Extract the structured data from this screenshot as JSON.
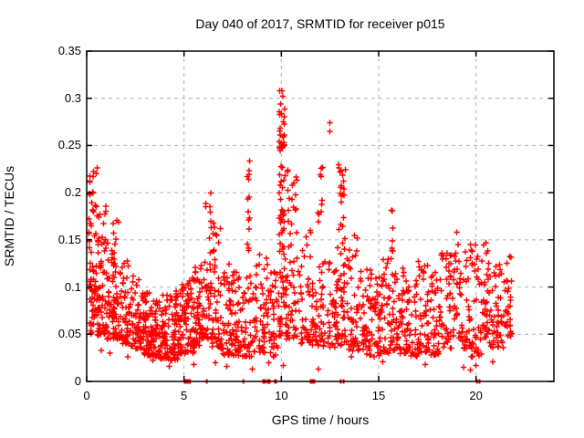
{
  "window": {
    "background": "#ffffff"
  },
  "chart_data": {
    "type": "scatter",
    "title": "Day 040 of 2017, SRMTID for receiver p015",
    "xlabel": "GPS time / hours",
    "ylabel": "SRMTID / TECUs",
    "xlim": [
      0,
      24
    ],
    "ylim": [
      0,
      0.35
    ],
    "marker": "plus",
    "marker_color": "#ff0000",
    "grid": {
      "on": true,
      "color": "#b2b2b2",
      "dash": "4 4"
    },
    "border_color": "#000000",
    "legend": "none",
    "xticks": [
      {
        "value": 0,
        "label": "0"
      },
      {
        "value": 5,
        "label": "5"
      },
      {
        "value": 10,
        "label": "10"
      },
      {
        "value": 15,
        "label": "15"
      },
      {
        "value": 20,
        "label": "20"
      }
    ],
    "yticks": [
      {
        "value": 0,
        "label": "0"
      },
      {
        "value": 0.05,
        "label": "0.05"
      },
      {
        "value": 0.1,
        "label": "0.1"
      },
      {
        "value": 0.15,
        "label": "0.15"
      },
      {
        "value": 0.2,
        "label": "0.2"
      },
      {
        "value": 0.25,
        "label": "0.25"
      },
      {
        "value": 0.3,
        "label": "0.3"
      },
      {
        "value": 0.35,
        "label": "0.35"
      }
    ],
    "seed": 20170401,
    "point_clusters": [
      {
        "x0": 0.1,
        "x1": 0.55,
        "y0": 0.095,
        "y1": 0.232,
        "n": 50,
        "k": 1.3
      },
      {
        "x0": 0.15,
        "x1": 0.7,
        "y0": 0.048,
        "y1": 0.1,
        "n": 40,
        "k": 1.2
      },
      {
        "x0": 0.55,
        "x1": 1.0,
        "y0": 0.05,
        "y1": 0.19,
        "n": 48,
        "k": 1.6
      },
      {
        "x0": 0.95,
        "x1": 1.45,
        "y0": 0.045,
        "y1": 0.15,
        "n": 45,
        "k": 1.6
      },
      {
        "x0": 1.35,
        "x1": 1.75,
        "y0": 0.045,
        "y1": 0.174,
        "n": 42,
        "k": 1.8
      },
      {
        "x0": 1.75,
        "x1": 2.25,
        "y0": 0.04,
        "y1": 0.128,
        "n": 48,
        "k": 1.7
      },
      {
        "x0": 2.25,
        "x1": 2.75,
        "y0": 0.035,
        "y1": 0.112,
        "n": 50,
        "k": 1.7
      },
      {
        "x0": 2.75,
        "x1": 3.25,
        "y0": 0.028,
        "y1": 0.098,
        "n": 55,
        "k": 1.6
      },
      {
        "x0": 3.25,
        "x1": 3.75,
        "y0": 0.026,
        "y1": 0.088,
        "n": 55,
        "k": 1.5
      },
      {
        "x0": 3.75,
        "x1": 4.25,
        "y0": 0.024,
        "y1": 0.092,
        "n": 55,
        "k": 1.5
      },
      {
        "x0": 4.25,
        "x1": 4.7,
        "y0": 0.022,
        "y1": 0.096,
        "n": 50,
        "k": 1.5
      },
      {
        "x0": 4.7,
        "x1": 5.1,
        "y0": 0.028,
        "y1": 0.104,
        "n": 45,
        "k": 1.5
      },
      {
        "x0": 5.1,
        "x1": 5.55,
        "y0": 0.03,
        "y1": 0.11,
        "n": 45,
        "k": 1.5
      },
      {
        "x0": 5.55,
        "x1": 5.95,
        "y0": 0.038,
        "y1": 0.125,
        "n": 42,
        "k": 1.6
      },
      {
        "x0": 5.95,
        "x1": 6.45,
        "y0": 0.045,
        "y1": 0.2,
        "n": 50,
        "k": 1.9
      },
      {
        "x0": 6.45,
        "x1": 6.95,
        "y0": 0.035,
        "y1": 0.168,
        "n": 46,
        "k": 1.8
      },
      {
        "x0": 6.95,
        "x1": 7.5,
        "y0": 0.028,
        "y1": 0.126,
        "n": 46,
        "k": 1.6
      },
      {
        "x0": 7.5,
        "x1": 8.1,
        "y0": 0.025,
        "y1": 0.118,
        "n": 46,
        "k": 1.5
      },
      {
        "x0": 8.22,
        "x1": 8.38,
        "y0": 0.132,
        "y1": 0.235,
        "n": 14,
        "k": 1.0
      },
      {
        "x0": 8.1,
        "x1": 8.7,
        "y0": 0.026,
        "y1": 0.115,
        "n": 42,
        "k": 1.5
      },
      {
        "x0": 8.7,
        "x1": 9.3,
        "y0": 0.03,
        "y1": 0.136,
        "n": 42,
        "k": 1.6
      },
      {
        "x0": 9.3,
        "x1": 9.85,
        "y0": 0.026,
        "y1": 0.12,
        "n": 38,
        "k": 1.5
      },
      {
        "x0": 9.88,
        "x1": 10.18,
        "y0": 0.228,
        "y1": 0.308,
        "n": 26,
        "k": 1.0
      },
      {
        "x0": 9.88,
        "x1": 10.2,
        "y0": 0.13,
        "y1": 0.228,
        "n": 30,
        "k": 1.2
      },
      {
        "x0": 9.85,
        "x1": 10.25,
        "y0": 0.048,
        "y1": 0.13,
        "n": 32,
        "k": 1.4
      },
      {
        "x0": 10.3,
        "x1": 10.8,
        "y0": 0.148,
        "y1": 0.226,
        "n": 18,
        "k": 1.1
      },
      {
        "x0": 10.25,
        "x1": 11.0,
        "y0": 0.045,
        "y1": 0.148,
        "n": 45,
        "k": 1.5
      },
      {
        "x0": 11.0,
        "x1": 11.55,
        "y0": 0.04,
        "y1": 0.162,
        "n": 40,
        "k": 1.6
      },
      {
        "x0": 11.55,
        "x1": 12.15,
        "y0": 0.038,
        "y1": 0.132,
        "n": 46,
        "k": 1.6
      },
      {
        "x0": 11.88,
        "x1": 12.12,
        "y0": 0.168,
        "y1": 0.23,
        "n": 10,
        "k": 1.0
      },
      {
        "x0": 12.15,
        "x1": 12.85,
        "y0": 0.036,
        "y1": 0.13,
        "n": 44,
        "k": 1.6
      },
      {
        "x0": 12.88,
        "x1": 13.28,
        "y0": 0.135,
        "y1": 0.232,
        "n": 24,
        "k": 1.0
      },
      {
        "x0": 12.85,
        "x1": 13.4,
        "y0": 0.038,
        "y1": 0.132,
        "n": 42,
        "k": 1.5
      },
      {
        "x0": 13.4,
        "x1": 14.0,
        "y0": 0.032,
        "y1": 0.155,
        "n": 46,
        "k": 1.7
      },
      {
        "x0": 14.0,
        "x1": 14.6,
        "y0": 0.028,
        "y1": 0.122,
        "n": 48,
        "k": 1.6
      },
      {
        "x0": 14.6,
        "x1": 15.2,
        "y0": 0.026,
        "y1": 0.116,
        "n": 48,
        "k": 1.6
      },
      {
        "x0": 15.2,
        "x1": 15.8,
        "y0": 0.03,
        "y1": 0.13,
        "n": 44,
        "k": 1.6
      },
      {
        "x0": 15.64,
        "x1": 15.76,
        "y0": 0.138,
        "y1": 0.182,
        "n": 6,
        "k": 1.0
      },
      {
        "x0": 15.8,
        "x1": 16.4,
        "y0": 0.028,
        "y1": 0.12,
        "n": 46,
        "k": 1.6
      },
      {
        "x0": 16.4,
        "x1": 17.0,
        "y0": 0.026,
        "y1": 0.112,
        "n": 46,
        "k": 1.6
      },
      {
        "x0": 17.0,
        "x1": 17.6,
        "y0": 0.03,
        "y1": 0.144,
        "n": 46,
        "k": 1.7
      },
      {
        "x0": 17.6,
        "x1": 18.2,
        "y0": 0.028,
        "y1": 0.122,
        "n": 46,
        "k": 1.6
      },
      {
        "x0": 18.2,
        "x1": 18.8,
        "y0": 0.035,
        "y1": 0.136,
        "n": 42,
        "k": 1.6
      },
      {
        "x0": 18.8,
        "x1": 19.3,
        "y0": 0.045,
        "y1": 0.147,
        "n": 36,
        "k": 1.5
      },
      {
        "x0": 19.3,
        "x1": 19.8,
        "y0": 0.035,
        "y1": 0.146,
        "n": 36,
        "k": 1.5
      },
      {
        "x0": 19.8,
        "x1": 20.4,
        "y0": 0.026,
        "y1": 0.155,
        "n": 40,
        "k": 1.6
      },
      {
        "x0": 20.4,
        "x1": 20.9,
        "y0": 0.035,
        "y1": 0.149,
        "n": 40,
        "k": 1.6
      },
      {
        "x0": 20.9,
        "x1": 21.5,
        "y0": 0.035,
        "y1": 0.126,
        "n": 40,
        "k": 1.6
      },
      {
        "x0": 21.5,
        "x1": 21.85,
        "y0": 0.048,
        "y1": 0.146,
        "n": 30,
        "k": 1.4
      }
    ],
    "outlier_points": [
      [
        0.75,
        0.033
      ],
      [
        1.2,
        0.03
      ],
      [
        2.1,
        0.026
      ],
      [
        3.4,
        0.022
      ],
      [
        4.25,
        0.016
      ],
      [
        5.5,
        0.018
      ],
      [
        6.6,
        0.02
      ],
      [
        7.2,
        0.016
      ],
      [
        8.5,
        0.013
      ],
      [
        9.35,
        0.02
      ],
      [
        10.1,
        0.017
      ],
      [
        11.9,
        0.013
      ],
      [
        13.6,
        0.026
      ],
      [
        15.2,
        0.021
      ],
      [
        17.4,
        0.018
      ],
      [
        19.0,
        0.158
      ],
      [
        19.35,
        0.015
      ],
      [
        19.7,
        0.012
      ],
      [
        19.75,
        0.026
      ],
      [
        20.0,
        0.017
      ],
      [
        20.85,
        0.021
      ],
      [
        12.5,
        0.265
      ],
      [
        12.5,
        0.274
      ],
      [
        15.7,
        0.181
      ],
      [
        10.02,
        0.308
      ]
    ],
    "zero_flag_markers": [
      {
        "x": 5.08,
        "w": 4
      },
      {
        "x": 5.26,
        "w": 4
      },
      {
        "x": 6.17,
        "w": 2
      },
      {
        "x": 8.05,
        "w": 2
      },
      {
        "x": 9.12,
        "w": 4
      },
      {
        "x": 9.35,
        "w": 4
      },
      {
        "x": 9.7,
        "w": 3
      },
      {
        "x": 11.6,
        "w": 6
      },
      {
        "x": 13.05,
        "w": 2
      },
      {
        "x": 13.2,
        "w": 2
      },
      {
        "x": 20.05,
        "w": 2
      },
      {
        "x": 20.18,
        "w": 2
      }
    ]
  }
}
